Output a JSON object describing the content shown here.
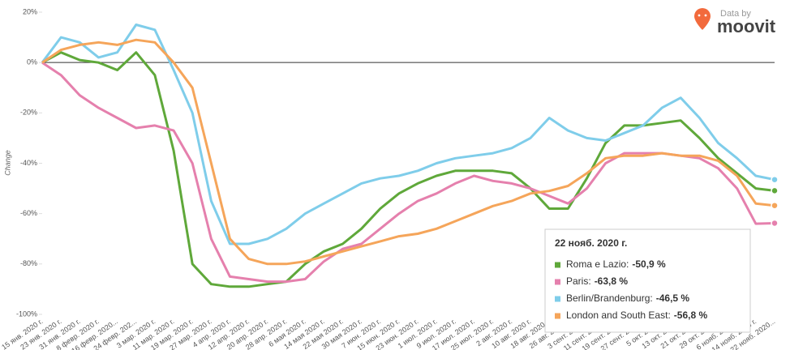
{
  "chart_data": {
    "type": "line",
    "y_label": "Change",
    "brand": {
      "prefix": "Data by",
      "name": "moovit"
    },
    "categories": [
      "15 янв. 2020 г.",
      "23 янв. 2020 г.",
      "31 янв. 2020 г.",
      "8 февр. 2020 г.",
      "16 февр. 2020...",
      "24 февр. 202...",
      "3 мар. 2020 г.",
      "11 мар. 2020 г.",
      "19 мар. 2020 г.",
      "27 мар. 2020 г.",
      "4 апр. 2020 г.",
      "12 апр. 2020 г.",
      "20 апр. 2020 г.",
      "28 апр. 2020 г.",
      "6 мая 2020 г.",
      "14 мая 2020 г.",
      "22 мая 2020 г.",
      "30 мая 2020 г.",
      "7 июн. 2020 г.",
      "15 июн. 2020 г.",
      "23 июн. 2020 г.",
      "1 июл. 2020 г.",
      "9 июл. 2020 г.",
      "17 июл. 2020 г.",
      "25 июл. 2020 г.",
      "2 авг. 2020 г.",
      "10 авг. 2020 г.",
      "18 авг. 2020 г.",
      "26 авг. 2020 г.",
      "3 сент. 2020 г.",
      "11 сент. 2020 г.",
      "19 сент. 2020 г.",
      "27 сент. 2020 г.",
      "5 окт. 2020 г.",
      "13 окт. 2020 г.",
      "21 окт. 2020 г.",
      "29 окт. 2020 г.",
      "6 нояб. 2020 г.",
      "14 нояб. 2020 г.",
      "22 нояб. 2020..."
    ],
    "ylim": [
      -100,
      20
    ],
    "yticks": [
      {
        "value": 20,
        "label": "20%"
      },
      {
        "value": 0,
        "label": "0%"
      },
      {
        "value": -20,
        "label": "-20%"
      },
      {
        "value": -40,
        "label": "-40%"
      },
      {
        "value": -60,
        "label": "-60%"
      },
      {
        "value": -80,
        "label": "-80%"
      },
      {
        "value": -100,
        "label": "-100%"
      }
    ],
    "tooltip_title": "22 нояб. 2020 г.",
    "series": [
      {
        "name": "Roma e Lazio:",
        "color": "#5fa83a",
        "values": [
          0,
          4,
          1,
          0,
          -3,
          4,
          -5,
          -35,
          -80,
          -88,
          -89,
          -89,
          -88,
          -87,
          -80,
          -75,
          -72,
          -66,
          -58,
          -52,
          -48,
          -45,
          -43,
          -43,
          -43,
          -44,
          -50,
          -58,
          -58,
          -46,
          -32,
          -25,
          -25,
          -24,
          -23,
          -30,
          -38,
          -44,
          -50,
          -50.9
        ],
        "value_labels": [
          null,
          null,
          null,
          null,
          null,
          null,
          null,
          null,
          null,
          null,
          null,
          null,
          null,
          null,
          null,
          null,
          null,
          null,
          null,
          null,
          null,
          null,
          null,
          null,
          null,
          null,
          null,
          null,
          null,
          null,
          null,
          null,
          null,
          null,
          null,
          null,
          null,
          null,
          null,
          "-50,9 %"
        ]
      },
      {
        "name": "Paris:",
        "color": "#e580ad",
        "values": [
          0,
          -5,
          -13,
          -18,
          -22,
          -26,
          -25,
          -27,
          -40,
          -70,
          -85,
          -86,
          -87,
          -87,
          -86,
          -79,
          -74,
          -72,
          -66,
          -60,
          -55,
          -52,
          -48,
          -45,
          -47,
          -48,
          -50,
          -53,
          -56,
          -50,
          -40,
          -36,
          -36,
          -36,
          -37,
          -38,
          -42,
          -50,
          -64,
          -63.8
        ],
        "value_labels": [
          null,
          null,
          null,
          null,
          null,
          null,
          null,
          null,
          null,
          null,
          null,
          null,
          null,
          null,
          null,
          null,
          null,
          null,
          null,
          null,
          null,
          null,
          null,
          null,
          null,
          null,
          null,
          null,
          null,
          null,
          null,
          null,
          null,
          null,
          null,
          null,
          null,
          null,
          null,
          "-63,8 %"
        ]
      },
      {
        "name": "Berlin/Brandenburg:",
        "color": "#7fcdea",
        "values": [
          0,
          10,
          8,
          2,
          4,
          15,
          13,
          -3,
          -20,
          -55,
          -72,
          -72,
          -70,
          -66,
          -60,
          -56,
          -52,
          -48,
          -46,
          -45,
          -43,
          -40,
          -38,
          -37,
          -36,
          -34,
          -30,
          -22,
          -27,
          -30,
          -31,
          -28,
          -25,
          -18,
          -14,
          -22,
          -32,
          -38,
          -45,
          -46.5
        ],
        "value_labels": [
          null,
          null,
          null,
          null,
          null,
          null,
          null,
          null,
          null,
          null,
          null,
          null,
          null,
          null,
          null,
          null,
          null,
          null,
          null,
          null,
          null,
          null,
          null,
          null,
          null,
          null,
          null,
          null,
          null,
          null,
          null,
          null,
          null,
          null,
          null,
          null,
          null,
          null,
          null,
          "-46,5 %"
        ]
      },
      {
        "name": "London and South East:",
        "color": "#f5a55a",
        "values": [
          0,
          5,
          7,
          8,
          7,
          9,
          8,
          0,
          -10,
          -40,
          -70,
          -78,
          -80,
          -80,
          -79,
          -77,
          -75,
          -73,
          -71,
          -69,
          -68,
          -66,
          -63,
          -60,
          -57,
          -55,
          -52,
          -51,
          -49,
          -44,
          -38,
          -37,
          -37,
          -36,
          -37,
          -37,
          -39,
          -45,
          -56,
          -56.8
        ],
        "value_labels": [
          null,
          null,
          null,
          null,
          null,
          null,
          null,
          null,
          null,
          null,
          null,
          null,
          null,
          null,
          null,
          null,
          null,
          null,
          null,
          null,
          null,
          null,
          null,
          null,
          null,
          null,
          null,
          null,
          null,
          null,
          null,
          null,
          null,
          null,
          null,
          null,
          null,
          null,
          null,
          "-56,8 %"
        ]
      }
    ]
  }
}
